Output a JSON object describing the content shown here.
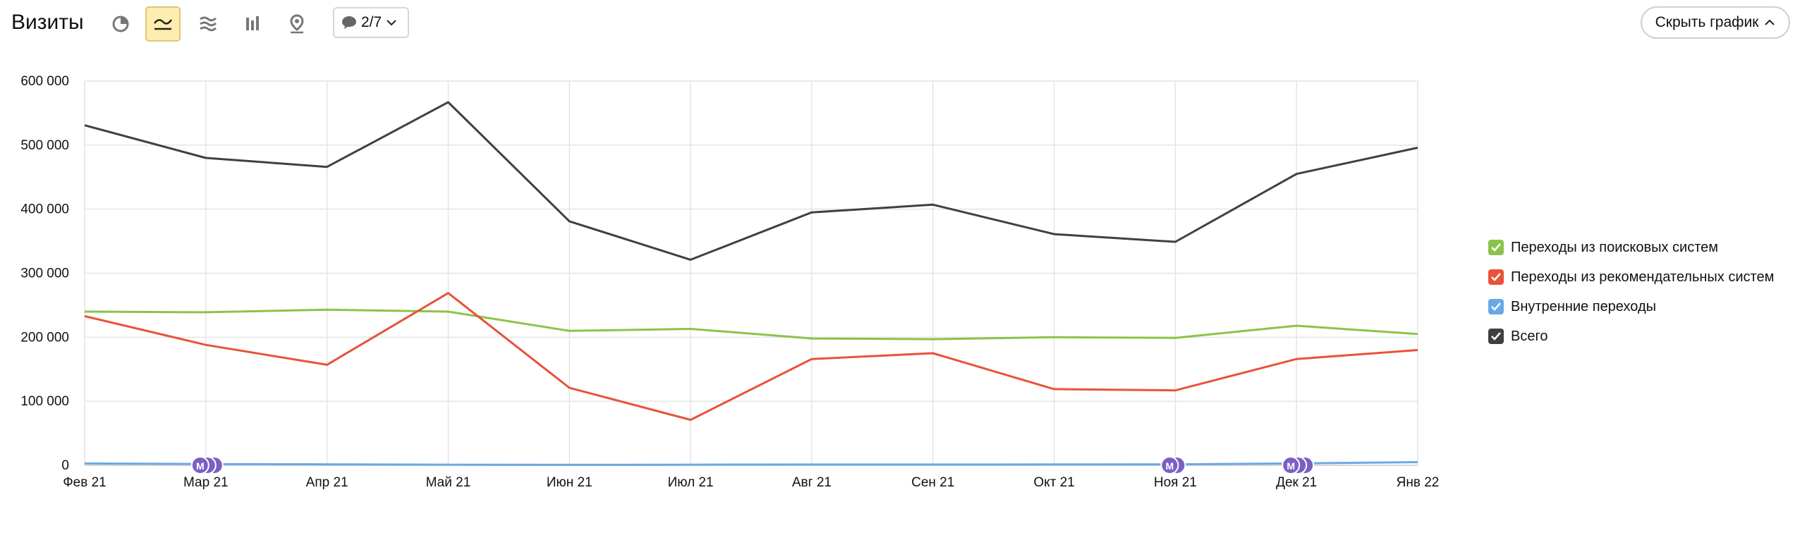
{
  "header": {
    "title": "Визиты",
    "counter_label": "2/7",
    "hide_chart_label": "Скрыть график"
  },
  "toolbar_icons": [
    "pie-chart-icon",
    "line-chart-icon",
    "stacked-area-icon",
    "bar-chart-icon",
    "map-pin-icon"
  ],
  "legend": [
    {
      "label": "Переходы из поисковых систем",
      "color": "#8bc34a",
      "checked": true
    },
    {
      "label": "Переходы из рекомендательных систем",
      "color": "#e8533a",
      "checked": true
    },
    {
      "label": "Внутренние переходы",
      "color": "#6aa8e8",
      "checked": true
    },
    {
      "label": "Всего",
      "color": "#404040",
      "checked": true
    }
  ],
  "chart_data": {
    "type": "line",
    "categories": [
      "Фев 21",
      "Мар 21",
      "Апр 21",
      "Май 21",
      "Июн 21",
      "Июл 21",
      "Авг 21",
      "Сен 21",
      "Окт 21",
      "Ноя 21",
      "Дек 21",
      "Янв 22"
    ],
    "y_ticks": [
      "0",
      "100 000",
      "200 000",
      "300 000",
      "400 000",
      "500 000",
      "600 000"
    ],
    "ylim": [
      0,
      600000
    ],
    "grid": true,
    "legend_position": "right",
    "series": [
      {
        "name": "Переходы из поисковых систем",
        "color": "#8bc34a",
        "values": [
          240000,
          239000,
          243000,
          240000,
          210000,
          213000,
          198000,
          197000,
          200000,
          199000,
          218000,
          205000
        ]
      },
      {
        "name": "Переходы из рекомендательных систем",
        "color": "#e8533a",
        "values": [
          233000,
          188000,
          157000,
          269000,
          121000,
          71000,
          166000,
          175000,
          119000,
          117000,
          166000,
          180000
        ]
      },
      {
        "name": "Внутренние переходы",
        "color": "#6aa8e8",
        "values": [
          3000,
          2000,
          1500,
          1000,
          800,
          1000,
          1200,
          1200,
          1300,
          1500,
          3000,
          5000
        ]
      },
      {
        "name": "Всего",
        "color": "#404040",
        "values": [
          531000,
          480000,
          466000,
          567000,
          381000,
          321000,
          395000,
          407000,
          361000,
          349000,
          455000,
          496000
        ]
      }
    ],
    "annotations": [
      {
        "category": "Мар 21",
        "label": "М",
        "count": 3
      },
      {
        "category": "Ноя 21",
        "label": "М",
        "count": 2
      },
      {
        "category": "Дек 21",
        "label": "М",
        "count": 3
      }
    ]
  }
}
